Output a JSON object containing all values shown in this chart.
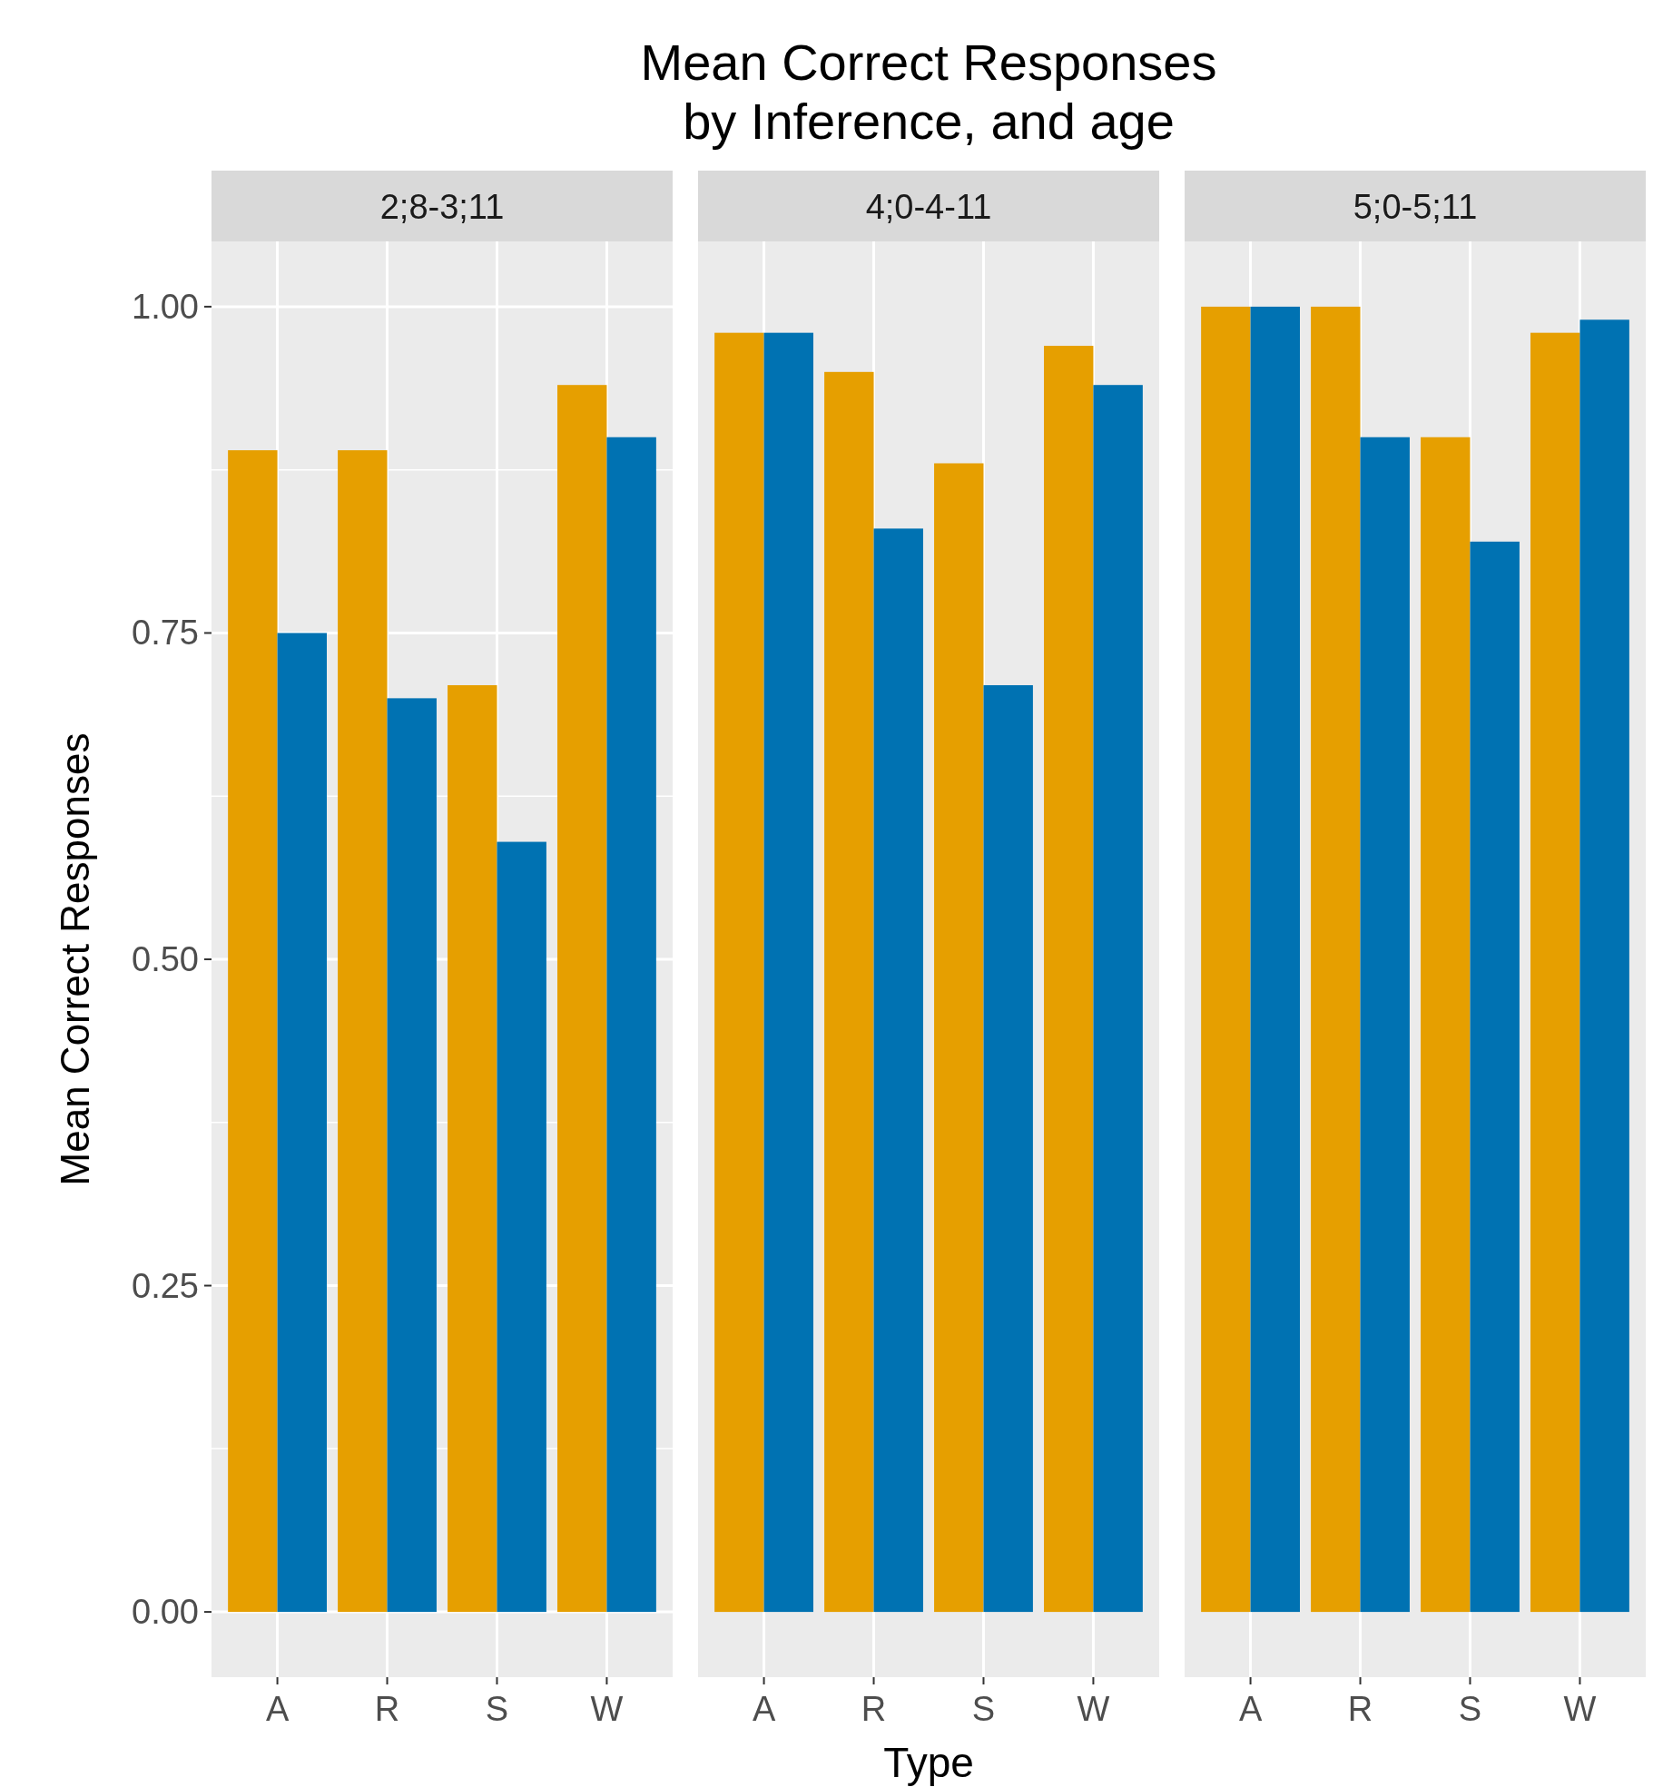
{
  "chart_data": [
    {
      "type": "bar",
      "subtitle": "2;8-3;11",
      "ylabel": "Mean Correct Responses",
      "categories": [
        "A",
        "R",
        "S",
        "W"
      ],
      "series": [
        {
          "color": "#e69f00",
          "values": [
            0.89,
            0.89,
            0.71,
            0.94
          ]
        },
        {
          "color": "#0072b2",
          "values": [
            0.75,
            0.7,
            0.59,
            0.9
          ]
        }
      ],
      "ylim": [
        -0.05,
        1.05
      ],
      "yticks": [
        {
          "value": 0,
          "label": "0.00"
        },
        {
          "value": 0.25,
          "label": "0.25"
        },
        {
          "value": 0.5,
          "label": "0.50"
        },
        {
          "value": 0.75,
          "label": "0.75"
        },
        {
          "value": 1,
          "label": "1.00"
        }
      ],
      "grid": true
    },
    {
      "type": "bar",
      "title": "Mean Correct Responses\nby Inference, and age",
      "subtitle": "4;0-4-11",
      "xlabel": "Type",
      "categories": [
        "A",
        "R",
        "S",
        "W"
      ],
      "series": [
        {
          "color": "#e69f00",
          "values": [
            0.98,
            0.95,
            0.88,
            0.97
          ]
        },
        {
          "color": "#0072b2",
          "values": [
            0.98,
            0.83,
            0.71,
            0.94
          ]
        }
      ],
      "ylim": [
        -0.05,
        1.05
      ],
      "grid": true,
      "tick_labels": "x"
    },
    {
      "type": "bar",
      "subtitle": "5;0-5;11",
      "categories": [
        "A",
        "R",
        "S",
        "W"
      ],
      "series": [
        {
          "color": "#e69f00",
          "values": [
            1.0,
            1.0,
            0.9,
            0.98
          ]
        },
        {
          "color": "#0072b2",
          "values": [
            1.0,
            0.9,
            0.82,
            0.99
          ]
        }
      ],
      "ylim": [
        -0.05,
        1.05
      ],
      "grid": true,
      "tick_labels": "x"
    }
  ]
}
